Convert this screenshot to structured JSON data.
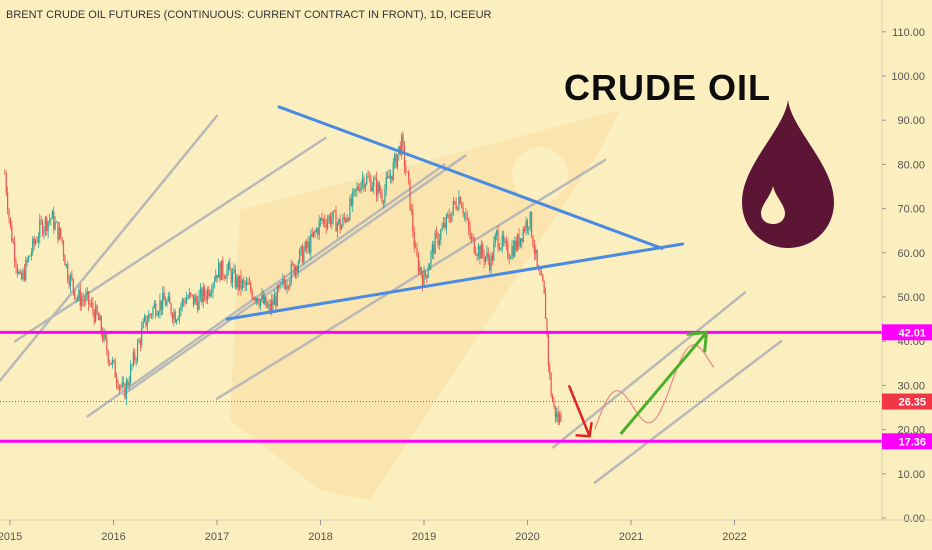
{
  "chart_data": {
    "type": "candlestick",
    "title": "BRENT CRUDE OIL FUTURES (CONTINUOUS: CURRENT CONTRACT IN FRONT), 1D, ICEEUR",
    "annotation_title": "CRUDE OIL",
    "x_ticks": [
      "2015",
      "2016",
      "2017",
      "2018",
      "2019",
      "2020",
      "2021",
      "2022"
    ],
    "y_ticks": [
      "110.00",
      "100.00",
      "90.00",
      "80.00",
      "70.00",
      "60.00",
      "50.00",
      "40.00",
      "30.00",
      "20.00",
      "10.00",
      "0.00"
    ],
    "ylim": [
      0,
      117
    ],
    "price_path": [
      [
        2014.95,
        78
      ],
      [
        2015.0,
        66
      ],
      [
        2015.1,
        53
      ],
      [
        2015.2,
        60
      ],
      [
        2015.3,
        66
      ],
      [
        2015.4,
        68
      ],
      [
        2015.5,
        63
      ],
      [
        2015.55,
        56
      ],
      [
        2015.65,
        50
      ],
      [
        2015.75,
        49
      ],
      [
        2015.85,
        45
      ],
      [
        2015.95,
        37
      ],
      [
        2016.05,
        31
      ],
      [
        2016.1,
        28
      ],
      [
        2016.2,
        36
      ],
      [
        2016.3,
        44
      ],
      [
        2016.4,
        48
      ],
      [
        2016.5,
        49
      ],
      [
        2016.6,
        46
      ],
      [
        2016.7,
        50
      ],
      [
        2016.8,
        49
      ],
      [
        2016.9,
        51
      ],
      [
        2017.0,
        56
      ],
      [
        2017.1,
        56
      ],
      [
        2017.2,
        53
      ],
      [
        2017.3,
        52
      ],
      [
        2017.4,
        50
      ],
      [
        2017.5,
        47
      ],
      [
        2017.6,
        51
      ],
      [
        2017.7,
        55
      ],
      [
        2017.8,
        59
      ],
      [
        2017.9,
        62
      ],
      [
        2018.0,
        67
      ],
      [
        2018.1,
        68
      ],
      [
        2018.2,
        66
      ],
      [
        2018.3,
        71
      ],
      [
        2018.4,
        77
      ],
      [
        2018.5,
        76
      ],
      [
        2018.6,
        73
      ],
      [
        2018.7,
        79
      ],
      [
        2018.78,
        85
      ],
      [
        2018.85,
        75
      ],
      [
        2018.92,
        59
      ],
      [
        2019.0,
        54
      ],
      [
        2019.1,
        62
      ],
      [
        2019.2,
        66
      ],
      [
        2019.3,
        71
      ],
      [
        2019.35,
        73
      ],
      [
        2019.45,
        63
      ],
      [
        2019.55,
        60
      ],
      [
        2019.65,
        58
      ],
      [
        2019.7,
        64
      ],
      [
        2019.8,
        60
      ],
      [
        2019.9,
        62
      ],
      [
        2019.97,
        66
      ],
      [
        2020.02,
        68
      ],
      [
        2020.06,
        62
      ],
      [
        2020.1,
        55
      ],
      [
        2020.15,
        52
      ],
      [
        2020.18,
        45
      ],
      [
        2020.2,
        36
      ],
      [
        2020.22,
        30
      ],
      [
        2020.25,
        25
      ],
      [
        2020.3,
        22
      ],
      [
        2020.33,
        24
      ]
    ],
    "horizontal_levels": [
      {
        "value": 42.01,
        "label": "42.01",
        "color": "#ff00ff"
      },
      {
        "value": 17.36,
        "label": "17.36",
        "color": "#ff00ff"
      }
    ],
    "current_price": {
      "value": 26.35,
      "label": "26.35",
      "color": "#f23645"
    },
    "colors": {
      "up": "#26a69a",
      "down": "#ef5350",
      "trendline": "#4a8ae0",
      "channel": "#b8b8b8",
      "drop": "#5c1535"
    }
  }
}
